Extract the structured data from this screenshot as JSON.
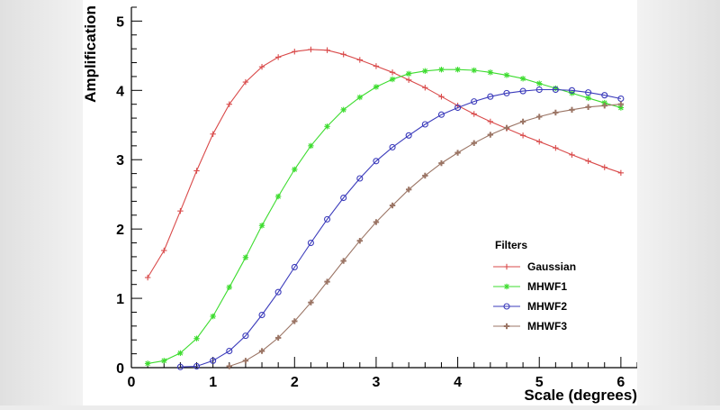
{
  "chart_data": {
    "type": "line",
    "title": "",
    "xlabel": "Scale (degrees)",
    "ylabel": "Amplification",
    "xlim": [
      0,
      6.2
    ],
    "ylim": [
      0,
      5.2
    ],
    "x_ticks": [
      0,
      1,
      2,
      3,
      4,
      5,
      6
    ],
    "y_ticks": [
      0,
      1,
      2,
      3,
      4,
      5
    ],
    "grid": false,
    "legend": {
      "title": "Filters",
      "position": "lower-right"
    },
    "x": [
      0.2,
      0.4,
      0.6,
      0.8,
      1.0,
      1.2,
      1.4,
      1.6,
      1.8,
      2.0,
      2.2,
      2.4,
      2.6,
      2.8,
      3.0,
      3.2,
      3.4,
      3.6,
      3.8,
      4.0,
      4.2,
      4.4,
      4.6,
      4.8,
      5.0,
      5.2,
      5.4,
      5.6,
      5.8,
      6.0
    ],
    "series": [
      {
        "name": "Gaussian",
        "color": "#d94a4a",
        "marker": "plus",
        "values": [
          1.3,
          1.69,
          2.26,
          2.84,
          3.37,
          3.8,
          4.12,
          4.34,
          4.48,
          4.56,
          4.59,
          4.58,
          4.52,
          4.44,
          4.35,
          4.26,
          4.15,
          4.04,
          3.91,
          3.78,
          3.66,
          3.55,
          3.45,
          3.35,
          3.26,
          3.17,
          3.07,
          2.98,
          2.89,
          2.81
        ]
      },
      {
        "name": "MHWF1",
        "color": "#3ddc2f",
        "marker": "star",
        "values": [
          0.06,
          0.1,
          0.21,
          0.42,
          0.74,
          1.16,
          1.59,
          2.05,
          2.47,
          2.86,
          3.2,
          3.48,
          3.72,
          3.9,
          4.05,
          4.16,
          4.24,
          4.28,
          4.3,
          4.3,
          4.29,
          4.26,
          4.22,
          4.17,
          4.1,
          4.03,
          3.96,
          3.89,
          3.82,
          3.75
        ]
      },
      {
        "name": "MHWF2",
        "color": "#3b3bbb",
        "marker": "circle",
        "values": [
          null,
          null,
          0.01,
          0.02,
          0.1,
          0.24,
          0.46,
          0.76,
          1.09,
          1.45,
          1.8,
          2.14,
          2.45,
          2.73,
          2.98,
          3.18,
          3.35,
          3.51,
          3.65,
          3.75,
          3.84,
          3.91,
          3.96,
          3.99,
          4.01,
          4.01,
          4.0,
          3.97,
          3.93,
          3.88
        ]
      },
      {
        "name": "MHWF3",
        "color": "#9b7565",
        "marker": "cross",
        "values": [
          null,
          null,
          null,
          null,
          null,
          0.02,
          0.1,
          0.24,
          0.43,
          0.67,
          0.94,
          1.24,
          1.54,
          1.83,
          2.1,
          2.34,
          2.57,
          2.77,
          2.95,
          3.1,
          3.24,
          3.36,
          3.46,
          3.55,
          3.62,
          3.68,
          3.72,
          3.76,
          3.78,
          3.8
        ]
      }
    ]
  }
}
